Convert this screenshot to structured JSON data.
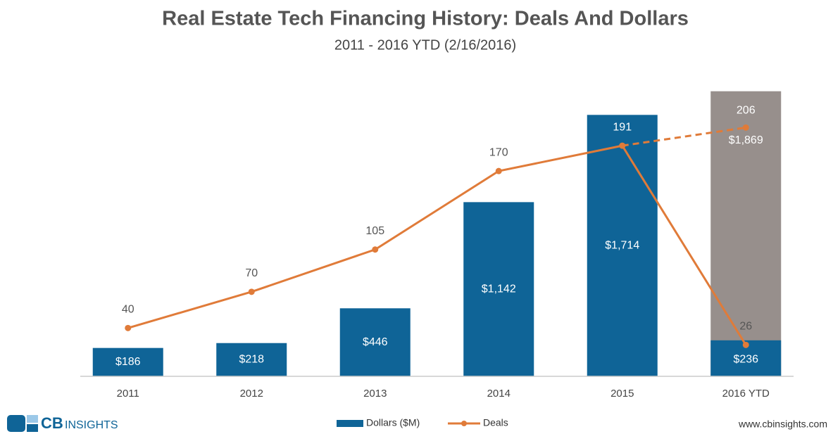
{
  "chart_data": {
    "type": "bar_line",
    "title": "Real Estate Tech Financing History: Deals And Dollars",
    "subtitle": "2011 - 2016 YTD (2/16/2016)",
    "categories": [
      "2011",
      "2012",
      "2013",
      "2014",
      "2015",
      "2016 YTD"
    ],
    "series": [
      {
        "name": "Dollars ($M)",
        "color": "#0f6497",
        "values": [
          186,
          218,
          446,
          1142,
          1714,
          236
        ],
        "value_labels": [
          "$186",
          "$218",
          "$446",
          "$1,142",
          "$1,714",
          "$236"
        ]
      },
      {
        "name": "Deals",
        "color": "#e07b39",
        "axis": "y2",
        "values": [
          40,
          70,
          105,
          170,
          191,
          26
        ]
      }
    ],
    "projection": {
      "color": "#978f8c",
      "dollars": 1869,
      "dollars_label": "$1,869",
      "deals": 206
    },
    "ylim": [
      0,
      1900
    ],
    "y2lim": [
      0,
      240
    ],
    "logo": {
      "mark": "CB",
      "text": "INSIGHTS"
    },
    "source": "www.cbinsights.com"
  }
}
